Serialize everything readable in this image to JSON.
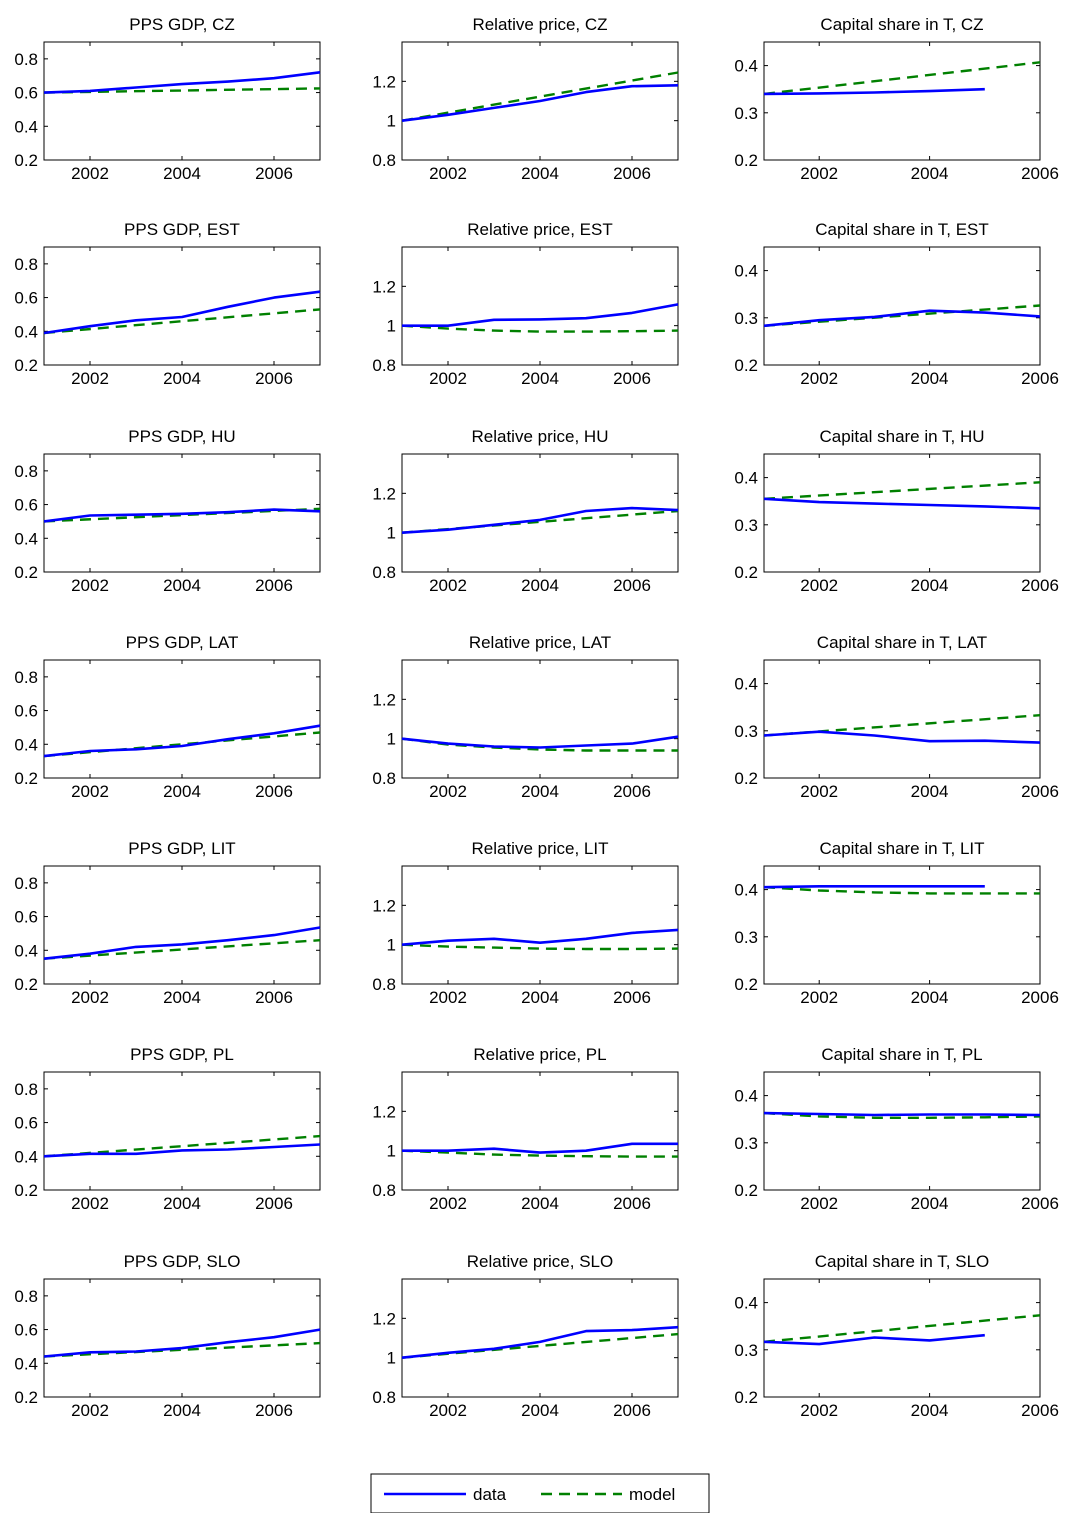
{
  "colors": {
    "data": "#0000ff",
    "model": "#008000"
  },
  "legend": {
    "placement": "bottom-center",
    "entries": [
      {
        "key": "data",
        "label": "data"
      },
      {
        "key": "model",
        "label": "model"
      }
    ]
  },
  "chart_data": [
    {
      "type": "line",
      "title": "PPS GDP, CZ",
      "xlim": [
        2001,
        2007
      ],
      "ylim": [
        0.2,
        0.9
      ],
      "xticks": [
        "2002",
        "2004",
        "2006"
      ],
      "yticks": [
        "0.2",
        "0.4",
        "0.6",
        "0.8"
      ],
      "grid": false,
      "series": [
        {
          "name": "data",
          "x": [
            2001,
            2002,
            2003,
            2004,
            2005,
            2006,
            2007
          ],
          "y": [
            0.6,
            0.61,
            0.63,
            0.65,
            0.665,
            0.685,
            0.72
          ]
        },
        {
          "name": "model",
          "x": [
            2001,
            2007
          ],
          "y": [
            0.6,
            0.625
          ]
        }
      ]
    },
    {
      "type": "line",
      "title": "Relative price, CZ",
      "xlim": [
        2001,
        2007
      ],
      "ylim": [
        0.8,
        1.4
      ],
      "xticks": [
        "2002",
        "2004",
        "2006"
      ],
      "yticks": [
        "0.8",
        "1",
        "1.2"
      ],
      "grid": false,
      "series": [
        {
          "name": "data",
          "x": [
            2001,
            2002,
            2003,
            2004,
            2005,
            2006,
            2007
          ],
          "y": [
            1.0,
            1.03,
            1.065,
            1.1,
            1.145,
            1.175,
            1.18
          ]
        },
        {
          "name": "model",
          "x": [
            2001,
            2007
          ],
          "y": [
            1.0,
            1.245
          ]
        }
      ]
    },
    {
      "type": "line",
      "title": "Capital share in T, CZ",
      "xlim": [
        2001,
        2006
      ],
      "ylim": [
        0.2,
        0.45
      ],
      "xticks": [
        "2002",
        "2004",
        "2006"
      ],
      "yticks": [
        "0.2",
        "0.3",
        "0.4"
      ],
      "grid": false,
      "series": [
        {
          "name": "data",
          "x": [
            2001,
            2002,
            2003,
            2004,
            2005
          ],
          "y": [
            0.34,
            0.341,
            0.343,
            0.346,
            0.35
          ]
        },
        {
          "name": "model",
          "x": [
            2001,
            2006
          ],
          "y": [
            0.34,
            0.407
          ]
        }
      ]
    },
    {
      "type": "line",
      "title": "PPS GDP, EST",
      "xlim": [
        2001,
        2007
      ],
      "ylim": [
        0.2,
        0.9
      ],
      "xticks": [
        "2002",
        "2004",
        "2006"
      ],
      "yticks": [
        "0.2",
        "0.4",
        "0.6",
        "0.8"
      ],
      "grid": false,
      "series": [
        {
          "name": "data",
          "x": [
            2001,
            2002,
            2003,
            2004,
            2005,
            2006,
            2007
          ],
          "y": [
            0.39,
            0.43,
            0.465,
            0.485,
            0.545,
            0.6,
            0.635
          ]
        },
        {
          "name": "model",
          "x": [
            2001,
            2007
          ],
          "y": [
            0.39,
            0.53
          ]
        }
      ]
    },
    {
      "type": "line",
      "title": "Relative price, EST",
      "xlim": [
        2001,
        2007
      ],
      "ylim": [
        0.8,
        1.4
      ],
      "xticks": [
        "2002",
        "2004",
        "2006"
      ],
      "yticks": [
        "0.8",
        "1",
        "1.2"
      ],
      "grid": false,
      "series": [
        {
          "name": "data",
          "x": [
            2001,
            2002,
            2003,
            2004,
            2005,
            2006,
            2007
          ],
          "y": [
            1.0,
            1.0,
            1.03,
            1.032,
            1.038,
            1.065,
            1.108
          ]
        },
        {
          "name": "model",
          "x": [
            2001,
            2002,
            2003,
            2004,
            2005,
            2006,
            2007
          ],
          "y": [
            1.0,
            0.985,
            0.975,
            0.97,
            0.97,
            0.972,
            0.975
          ]
        }
      ]
    },
    {
      "type": "line",
      "title": "Capital share in T, EST",
      "xlim": [
        2001,
        2006
      ],
      "ylim": [
        0.2,
        0.45
      ],
      "xticks": [
        "2002",
        "2004",
        "2006"
      ],
      "yticks": [
        "0.2",
        "0.3",
        "0.4"
      ],
      "grid": false,
      "series": [
        {
          "name": "data",
          "x": [
            2001,
            2002,
            2003,
            2004,
            2005,
            2006
          ],
          "y": [
            0.283,
            0.295,
            0.302,
            0.315,
            0.311,
            0.303
          ]
        },
        {
          "name": "model",
          "x": [
            2001,
            2006
          ],
          "y": [
            0.283,
            0.326
          ]
        }
      ]
    },
    {
      "type": "line",
      "title": "PPS GDP, HU",
      "xlim": [
        2001,
        2007
      ],
      "ylim": [
        0.2,
        0.9
      ],
      "xticks": [
        "2002",
        "2004",
        "2006"
      ],
      "yticks": [
        "0.2",
        "0.4",
        "0.6",
        "0.8"
      ],
      "grid": false,
      "series": [
        {
          "name": "data",
          "x": [
            2001,
            2002,
            2003,
            2004,
            2005,
            2006,
            2007
          ],
          "y": [
            0.5,
            0.535,
            0.54,
            0.545,
            0.555,
            0.57,
            0.56
          ]
        },
        {
          "name": "model",
          "x": [
            2001,
            2007
          ],
          "y": [
            0.5,
            0.575
          ]
        }
      ]
    },
    {
      "type": "line",
      "title": "Relative price, HU",
      "xlim": [
        2001,
        2007
      ],
      "ylim": [
        0.8,
        1.4
      ],
      "xticks": [
        "2002",
        "2004",
        "2006"
      ],
      "yticks": [
        "0.8",
        "1",
        "1.2"
      ],
      "grid": false,
      "series": [
        {
          "name": "data",
          "x": [
            2001,
            2002,
            2003,
            2004,
            2005,
            2006,
            2007
          ],
          "y": [
            1.0,
            1.015,
            1.04,
            1.065,
            1.11,
            1.125,
            1.115
          ]
        },
        {
          "name": "model",
          "x": [
            2001,
            2007
          ],
          "y": [
            1.0,
            1.11
          ]
        }
      ]
    },
    {
      "type": "line",
      "title": "Capital share in T, HU",
      "xlim": [
        2001,
        2006
      ],
      "ylim": [
        0.2,
        0.45
      ],
      "xticks": [
        "2002",
        "2004",
        "2006"
      ],
      "yticks": [
        "0.2",
        "0.3",
        "0.4"
      ],
      "grid": false,
      "series": [
        {
          "name": "data",
          "x": [
            2001,
            2002,
            2003,
            2004,
            2005,
            2006
          ],
          "y": [
            0.355,
            0.348,
            0.345,
            0.342,
            0.339,
            0.335
          ]
        },
        {
          "name": "model",
          "x": [
            2001,
            2006
          ],
          "y": [
            0.355,
            0.39
          ]
        }
      ]
    },
    {
      "type": "line",
      "title": "PPS GDP, LAT",
      "xlim": [
        2001,
        2007
      ],
      "ylim": [
        0.2,
        0.9
      ],
      "xticks": [
        "2002",
        "2004",
        "2006"
      ],
      "yticks": [
        "0.2",
        "0.4",
        "0.6",
        "0.8"
      ],
      "grid": false,
      "series": [
        {
          "name": "data",
          "x": [
            2001,
            2002,
            2003,
            2004,
            2005,
            2006,
            2007
          ],
          "y": [
            0.33,
            0.36,
            0.37,
            0.39,
            0.43,
            0.465,
            0.51
          ]
        },
        {
          "name": "model",
          "x": [
            2001,
            2007
          ],
          "y": [
            0.33,
            0.47
          ]
        }
      ]
    },
    {
      "type": "line",
      "title": "Relative price, LAT",
      "xlim": [
        2001,
        2007
      ],
      "ylim": [
        0.8,
        1.4
      ],
      "xticks": [
        "2002",
        "2004",
        "2006"
      ],
      "yticks": [
        "0.8",
        "1",
        "1.2"
      ],
      "grid": false,
      "series": [
        {
          "name": "data",
          "x": [
            2001,
            2002,
            2003,
            2004,
            2005,
            2006,
            2007
          ],
          "y": [
            1.0,
            0.975,
            0.96,
            0.955,
            0.965,
            0.975,
            1.01
          ]
        },
        {
          "name": "model",
          "x": [
            2001,
            2002,
            2003,
            2004,
            2005,
            2006,
            2007
          ],
          "y": [
            1.0,
            0.97,
            0.955,
            0.945,
            0.94,
            0.94,
            0.94
          ]
        }
      ]
    },
    {
      "type": "line",
      "title": "Capital share in T, LAT",
      "xlim": [
        2001,
        2006
      ],
      "ylim": [
        0.2,
        0.45
      ],
      "xticks": [
        "2002",
        "2004",
        "2006"
      ],
      "yticks": [
        "0.2",
        "0.3",
        "0.4"
      ],
      "grid": false,
      "series": [
        {
          "name": "data",
          "x": [
            2001,
            2002,
            2003,
            2004,
            2005,
            2006
          ],
          "y": [
            0.29,
            0.298,
            0.29,
            0.278,
            0.279,
            0.275
          ]
        },
        {
          "name": "model",
          "x": [
            2001,
            2006
          ],
          "y": [
            0.29,
            0.333
          ]
        }
      ]
    },
    {
      "type": "line",
      "title": "PPS GDP, LIT",
      "xlim": [
        2001,
        2007
      ],
      "ylim": [
        0.2,
        0.9
      ],
      "xticks": [
        "2002",
        "2004",
        "2006"
      ],
      "yticks": [
        "0.2",
        "0.4",
        "0.6",
        "0.8"
      ],
      "grid": false,
      "series": [
        {
          "name": "data",
          "x": [
            2001,
            2002,
            2003,
            2004,
            2005,
            2006,
            2007
          ],
          "y": [
            0.35,
            0.38,
            0.42,
            0.435,
            0.46,
            0.49,
            0.535
          ]
        },
        {
          "name": "model",
          "x": [
            2001,
            2007
          ],
          "y": [
            0.35,
            0.46
          ]
        }
      ]
    },
    {
      "type": "line",
      "title": "Relative price, LIT",
      "xlim": [
        2001,
        2007
      ],
      "ylim": [
        0.8,
        1.4
      ],
      "xticks": [
        "2002",
        "2004",
        "2006"
      ],
      "yticks": [
        "0.8",
        "1",
        "1.2"
      ],
      "grid": false,
      "series": [
        {
          "name": "data",
          "x": [
            2001,
            2002,
            2003,
            2004,
            2005,
            2006,
            2007
          ],
          "y": [
            1.0,
            1.02,
            1.03,
            1.01,
            1.03,
            1.06,
            1.075
          ]
        },
        {
          "name": "model",
          "x": [
            2001,
            2002,
            2003,
            2004,
            2005,
            2006,
            2007
          ],
          "y": [
            1.0,
            0.99,
            0.985,
            0.98,
            0.978,
            0.978,
            0.98
          ]
        }
      ]
    },
    {
      "type": "line",
      "title": "Capital share in T, LIT",
      "xlim": [
        2001,
        2006
      ],
      "ylim": [
        0.2,
        0.45
      ],
      "xticks": [
        "2002",
        "2004",
        "2006"
      ],
      "yticks": [
        "0.2",
        "0.3",
        "0.4"
      ],
      "grid": false,
      "series": [
        {
          "name": "data",
          "x": [
            2001,
            2002,
            2003,
            2004,
            2005
          ],
          "y": [
            0.405,
            0.407,
            0.407,
            0.407,
            0.407
          ]
        },
        {
          "name": "model",
          "x": [
            2001,
            2002,
            2003,
            2004,
            2005,
            2006
          ],
          "y": [
            0.405,
            0.398,
            0.394,
            0.392,
            0.392,
            0.392
          ]
        }
      ]
    },
    {
      "type": "line",
      "title": "PPS GDP, PL",
      "xlim": [
        2001,
        2007
      ],
      "ylim": [
        0.2,
        0.9
      ],
      "xticks": [
        "2002",
        "2004",
        "2006"
      ],
      "yticks": [
        "0.2",
        "0.4",
        "0.6",
        "0.8"
      ],
      "grid": false,
      "series": [
        {
          "name": "data",
          "x": [
            2001,
            2002,
            2003,
            2004,
            2005,
            2006,
            2007
          ],
          "y": [
            0.4,
            0.415,
            0.415,
            0.435,
            0.44,
            0.455,
            0.47
          ]
        },
        {
          "name": "model",
          "x": [
            2001,
            2007
          ],
          "y": [
            0.4,
            0.52
          ]
        }
      ]
    },
    {
      "type": "line",
      "title": "Relative price, PL",
      "xlim": [
        2001,
        2007
      ],
      "ylim": [
        0.8,
        1.4
      ],
      "xticks": [
        "2002",
        "2004",
        "2006"
      ],
      "yticks": [
        "0.8",
        "1",
        "1.2"
      ],
      "grid": false,
      "series": [
        {
          "name": "data",
          "x": [
            2001,
            2002,
            2003,
            2004,
            2005,
            2006,
            2007
          ],
          "y": [
            1.0,
            1.0,
            1.01,
            0.99,
            1.0,
            1.035,
            1.035
          ]
        },
        {
          "name": "model",
          "x": [
            2001,
            2002,
            2003,
            2004,
            2005,
            2006,
            2007
          ],
          "y": [
            1.0,
            0.99,
            0.98,
            0.975,
            0.972,
            0.97,
            0.97
          ]
        }
      ]
    },
    {
      "type": "line",
      "title": "Capital share in T, PL",
      "xlim": [
        2001,
        2006
      ],
      "ylim": [
        0.2,
        0.45
      ],
      "xticks": [
        "2002",
        "2004",
        "2006"
      ],
      "yticks": [
        "0.2",
        "0.3",
        "0.4"
      ],
      "grid": false,
      "series": [
        {
          "name": "data",
          "x": [
            2001,
            2002,
            2003,
            2004,
            2005,
            2006
          ],
          "y": [
            0.363,
            0.361,
            0.359,
            0.36,
            0.36,
            0.359
          ]
        },
        {
          "name": "model",
          "x": [
            2001,
            2002,
            2003,
            2004,
            2005,
            2006
          ],
          "y": [
            0.363,
            0.356,
            0.353,
            0.353,
            0.354,
            0.356
          ]
        }
      ]
    },
    {
      "type": "line",
      "title": "PPS GDP, SLO",
      "xlim": [
        2001,
        2007
      ],
      "ylim": [
        0.2,
        0.9
      ],
      "xticks": [
        "2002",
        "2004",
        "2006"
      ],
      "yticks": [
        "0.2",
        "0.4",
        "0.6",
        "0.8"
      ],
      "grid": false,
      "series": [
        {
          "name": "data",
          "x": [
            2001,
            2002,
            2003,
            2004,
            2005,
            2006,
            2007
          ],
          "y": [
            0.44,
            0.465,
            0.47,
            0.49,
            0.525,
            0.555,
            0.6
          ]
        },
        {
          "name": "model",
          "x": [
            2001,
            2007
          ],
          "y": [
            0.44,
            0.52
          ]
        }
      ]
    },
    {
      "type": "line",
      "title": "Relative price, SLO",
      "xlim": [
        2001,
        2007
      ],
      "ylim": [
        0.8,
        1.4
      ],
      "xticks": [
        "2002",
        "2004",
        "2006"
      ],
      "yticks": [
        "0.8",
        "1",
        "1.2"
      ],
      "grid": false,
      "series": [
        {
          "name": "data",
          "x": [
            2001,
            2002,
            2003,
            2004,
            2005,
            2006,
            2007
          ],
          "y": [
            1.0,
            1.025,
            1.045,
            1.08,
            1.135,
            1.14,
            1.155
          ]
        },
        {
          "name": "model",
          "x": [
            2001,
            2007
          ],
          "y": [
            1.0,
            1.12
          ]
        }
      ]
    },
    {
      "type": "line",
      "title": "Capital share in T, SLO",
      "xlim": [
        2001,
        2006
      ],
      "ylim": [
        0.2,
        0.45
      ],
      "xticks": [
        "2002",
        "2004",
        "2006"
      ],
      "yticks": [
        "0.2",
        "0.3",
        "0.4"
      ],
      "grid": false,
      "series": [
        {
          "name": "data",
          "x": [
            2001,
            2002,
            2003,
            2004,
            2005
          ],
          "y": [
            0.317,
            0.312,
            0.326,
            0.32,
            0.331
          ]
        },
        {
          "name": "model",
          "x": [
            2001,
            2006
          ],
          "y": [
            0.317,
            0.373
          ]
        }
      ]
    }
  ]
}
